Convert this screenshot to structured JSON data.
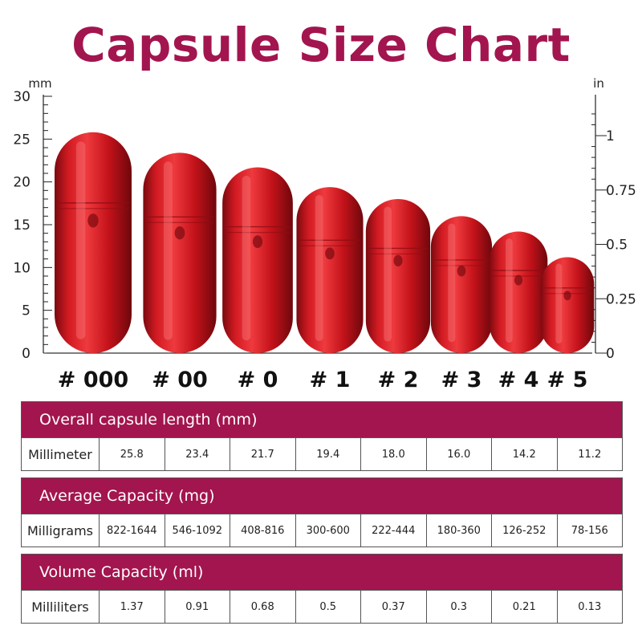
{
  "title": "Capsule Size Chart",
  "chart_data": {
    "type": "bar",
    "title": "Capsule Size Chart",
    "categories": [
      "# 000",
      "# 00",
      "# 0",
      "# 1",
      "# 2",
      "# 3",
      "# 4",
      "# 5"
    ],
    "values": [
      25.8,
      23.4,
      21.7,
      19.4,
      18.0,
      16.0,
      14.2,
      11.2
    ],
    "left_axis": {
      "unit": "mm",
      "range": [
        0,
        30
      ],
      "ticks": [
        "0",
        "5",
        "10",
        "15",
        "20",
        "25",
        "30"
      ],
      "minor_step": 1
    },
    "right_axis": {
      "unit": "in",
      "range": [
        0,
        1.181
      ],
      "ticks": [
        {
          "value": 0,
          "label": "0"
        },
        {
          "value": 0.25,
          "label": "0.25"
        },
        {
          "value": 0.5,
          "label": "0.5"
        },
        {
          "value": 0.75,
          "label": "0.75"
        },
        {
          "value": 1,
          "label": "1"
        }
      ]
    },
    "bar_color": "#c8141c",
    "grid": false
  },
  "tables": [
    {
      "heading": "Overall capsule length (mm)",
      "row_label": "Millimeter",
      "cells": [
        "25.8",
        "23.4",
        "21.7",
        "19.4",
        "18.0",
        "16.0",
        "14.2",
        "11.2"
      ]
    },
    {
      "heading": "Average Capacity (mg)",
      "row_label": "Milligrams",
      "cells": [
        "822-1644",
        "546-1092",
        "408-816",
        "300-600",
        "222-444",
        "180-360",
        "126-252",
        "78-156"
      ]
    },
    {
      "heading": "Volume Capacity (ml)",
      "row_label": "Milliliters",
      "cells": [
        "1.37",
        "0.91",
        "0.68",
        "0.5",
        "0.37",
        "0.3",
        "0.21",
        "0.13"
      ]
    }
  ],
  "colors": {
    "accent": "#a3154e",
    "capsule": "#c8141c",
    "table_header_text": "#ffffff"
  }
}
